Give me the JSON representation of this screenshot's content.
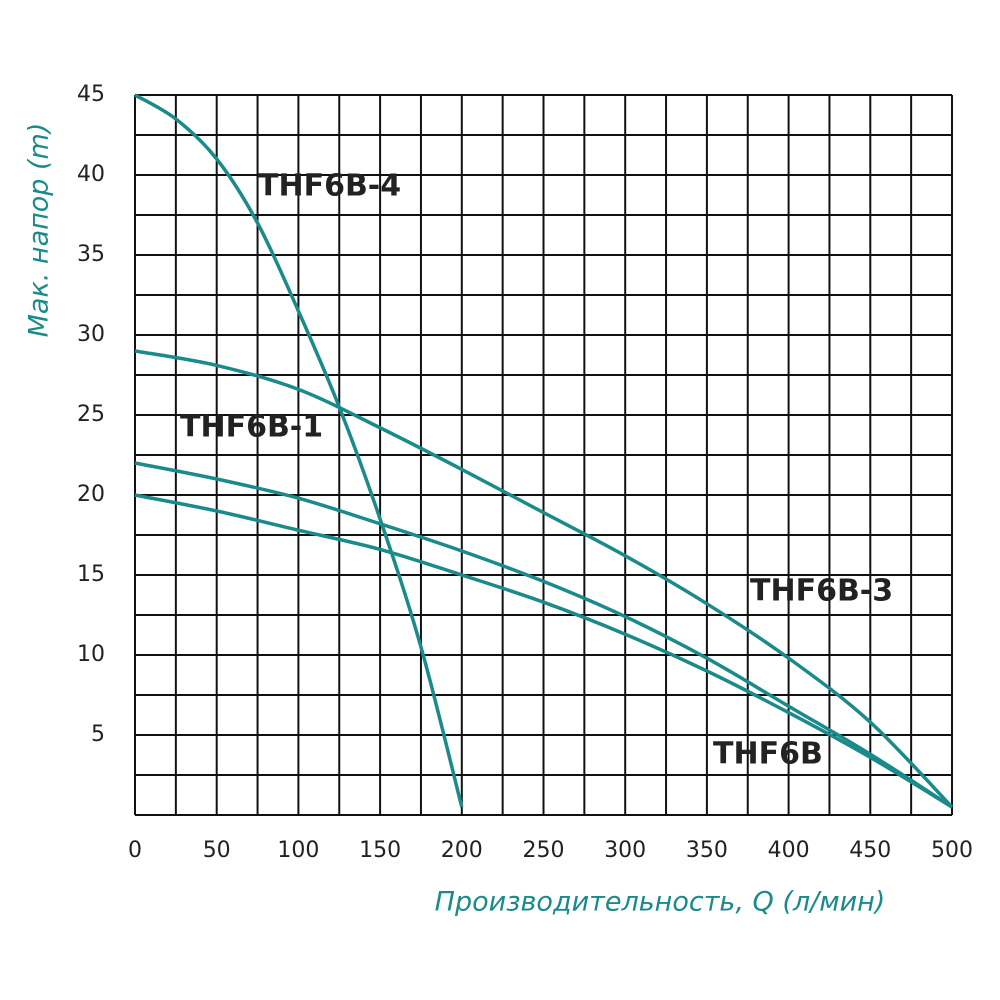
{
  "chart_data": {
    "type": "line",
    "x_label": "Производительность, Q (л/мин)",
    "y_label": "Мак. напор (m)",
    "xlim": [
      0,
      500
    ],
    "xticks": [
      0,
      50,
      100,
      150,
      200,
      250,
      300,
      350,
      400,
      450,
      500
    ],
    "ylim": [
      0,
      45
    ],
    "yticks": [
      5,
      10,
      15,
      20,
      25,
      30,
      35,
      40,
      45
    ],
    "grid": true,
    "series": [
      {
        "name": "THF6B-4",
        "color": "#1a8a8a",
        "x": [
          0,
          25,
          50,
          75,
          100,
          125,
          150,
          175,
          200
        ],
        "values": [
          45,
          43.5,
          41,
          37,
          31.5,
          25.5,
          18.5,
          10.5,
          0.5
        ]
      },
      {
        "name": "THF6B-3",
        "color": "#1a8a8a",
        "x": [
          0,
          50,
          100,
          150,
          200,
          250,
          300,
          350,
          400,
          450,
          500
        ],
        "values": [
          29,
          28.1,
          26.6,
          24.2,
          21.6,
          18.9,
          16.2,
          13.2,
          9.8,
          5.8,
          0.5
        ]
      },
      {
        "name": "THF6B-1",
        "color": "#1a8a8a",
        "x": [
          0,
          50,
          100,
          150,
          200,
          250,
          300,
          350,
          400,
          450,
          500
        ],
        "values": [
          22,
          21,
          19.8,
          18.2,
          16.5,
          14.6,
          12.4,
          9.8,
          6.8,
          3.8,
          0.5
        ]
      },
      {
        "name": "THF6B",
        "color": "#1a8a8a",
        "x": [
          0,
          50,
          100,
          150,
          200,
          250,
          300,
          350,
          400,
          450,
          500
        ],
        "values": [
          20,
          19,
          17.8,
          16.6,
          15,
          13.3,
          11.3,
          9,
          6.4,
          3.6,
          0.5
        ]
      }
    ]
  }
}
